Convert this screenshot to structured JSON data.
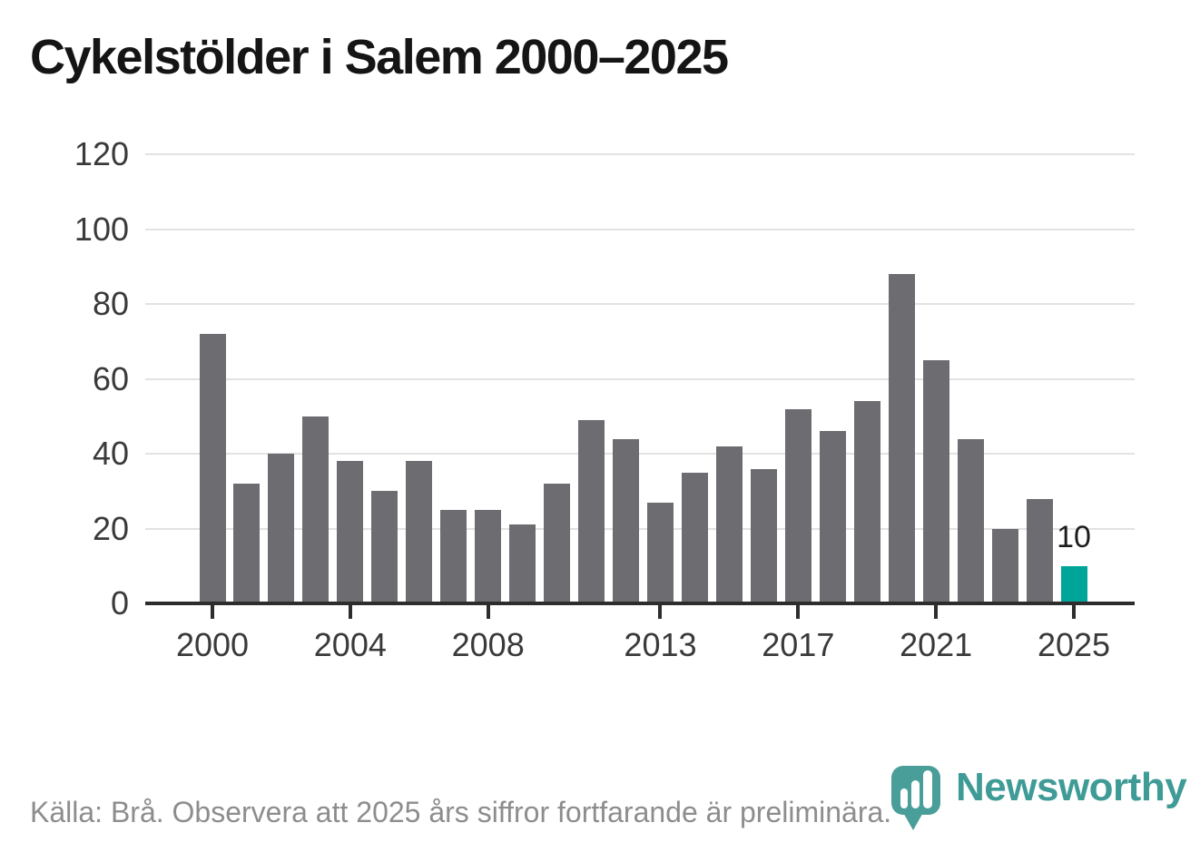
{
  "title": "Cykelstölder i Salem 2000–2025",
  "chart_data": {
    "type": "bar",
    "title": "Cykelstölder i Salem 2000–2025",
    "xlabel": "",
    "ylabel": "",
    "x": [
      2000,
      2001,
      2002,
      2003,
      2004,
      2005,
      2006,
      2007,
      2008,
      2009,
      2010,
      2011,
      2012,
      2013,
      2014,
      2015,
      2016,
      2017,
      2018,
      2019,
      2020,
      2021,
      2022,
      2023,
      2024,
      2025
    ],
    "values": [
      72,
      32,
      40,
      50,
      38,
      30,
      38,
      25,
      25,
      21,
      32,
      49,
      44,
      27,
      35,
      42,
      36,
      52,
      46,
      54,
      88,
      65,
      44,
      20,
      28,
      10
    ],
    "y_ticks": [
      0,
      20,
      40,
      60,
      80,
      100,
      120
    ],
    "x_ticks": [
      2000,
      2004,
      2008,
      2013,
      2017,
      2021,
      2025
    ],
    "ylim": [
      0,
      120
    ],
    "grid": true,
    "legend": "none",
    "bar_color": "#6d6d71",
    "highlight_year": 2025,
    "highlight_color": "#00a59a",
    "annotations": [
      {
        "year": 2025,
        "text": "10"
      }
    ]
  },
  "footer": {
    "source_text": "Källa: Brå. Observera att 2025 års siffror fortfarande är preliminära."
  },
  "branding": {
    "wordmark": "Newsworthy",
    "icon": "newsworthy-pin-bar-chart-icon",
    "brand_color": "#3f9b96",
    "icon_color": "#4a9e99"
  }
}
